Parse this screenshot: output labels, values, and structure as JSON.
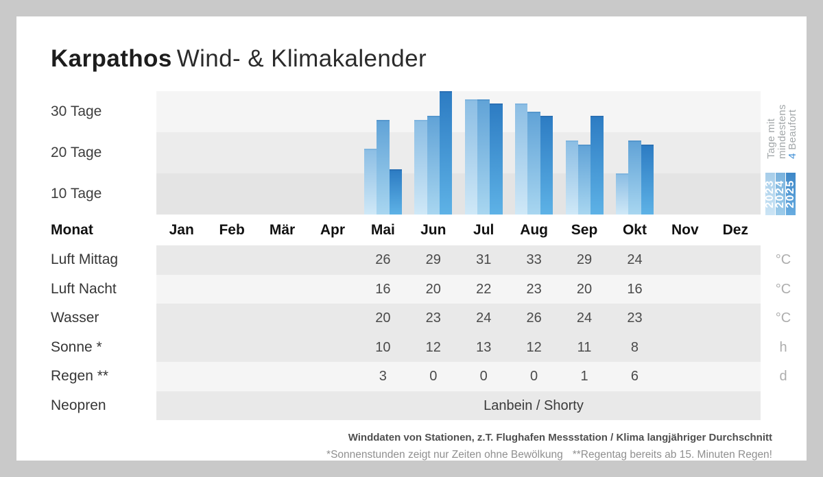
{
  "title": {
    "brand": "Karpathos",
    "subtitle": "Wind- & Klimakalender"
  },
  "chart_data": {
    "type": "bar",
    "title": "Tage mit mindestens 4 Beaufort",
    "ylabel": "Tage",
    "ylim": [
      0,
      30
    ],
    "y_ticks": [
      "30 Tage",
      "20 Tage",
      "10 Tage"
    ],
    "grid": "horizontal-bands",
    "legend_position": "right-vertical",
    "categories": [
      "Jan",
      "Feb",
      "Mär",
      "Apr",
      "Mai",
      "Jun",
      "Jul",
      "Aug",
      "Sep",
      "Okt",
      "Nov",
      "Dez"
    ],
    "series": [
      {
        "name": "2023",
        "values": [
          null,
          null,
          null,
          null,
          16,
          23,
          28,
          27,
          18,
          10,
          null,
          null
        ]
      },
      {
        "name": "2024",
        "values": [
          null,
          null,
          null,
          null,
          23,
          24,
          28,
          25,
          17,
          18,
          null,
          null
        ]
      },
      {
        "name": "2025",
        "values": [
          null,
          null,
          null,
          null,
          11,
          30,
          27,
          24,
          24,
          17,
          null,
          null
        ]
      }
    ]
  },
  "legend": {
    "line1": "Tage mit",
    "line2": "mindestens",
    "accent": "4",
    "accent_rest": " Beaufort",
    "years": [
      {
        "label": "2023"
      },
      {
        "label": "2024"
      },
      {
        "label": "2025"
      }
    ]
  },
  "table": {
    "month_header_label": "Monat",
    "rows": [
      {
        "label": "Luft Mittag",
        "unit": "°C",
        "values": [
          "",
          "",
          "",
          "",
          "26",
          "29",
          "31",
          "33",
          "29",
          "24",
          "",
          ""
        ]
      },
      {
        "label": "Luft Nacht",
        "unit": "°C",
        "values": [
          "",
          "",
          "",
          "",
          "16",
          "20",
          "22",
          "23",
          "20",
          "16",
          "",
          ""
        ]
      },
      {
        "label": "Wasser",
        "unit": "°C",
        "values": [
          "",
          "",
          "",
          "",
          "20",
          "23",
          "24",
          "26",
          "24",
          "23",
          "",
          ""
        ]
      },
      {
        "label": "Sonne *",
        "unit": "h",
        "values": [
          "",
          "",
          "",
          "",
          "10",
          "12",
          "13",
          "12",
          "11",
          "8",
          "",
          ""
        ]
      },
      {
        "label": "Regen **",
        "unit": "d",
        "values": [
          "",
          "",
          "",
          "",
          "3",
          "0",
          "0",
          "0",
          "1",
          "6",
          "",
          ""
        ]
      },
      {
        "label": "Neopren",
        "unit": "",
        "values": [
          "",
          "",
          "",
          "",
          "",
          "",
          "",
          "",
          "",
          "",
          "",
          ""
        ],
        "span_text": "Lanbein / Shorty"
      }
    ]
  },
  "footer": {
    "source": "Winddaten von Stationen, z.T. Flughafen Messstation / Klima langjähriger Durchschnitt",
    "note_sun": "*Sonnenstunden zeigt nur Zeiten ohne Bewölkung",
    "note_rain": "**Regentag bereits ab 15. Minuten Regen!"
  },
  "colors": {
    "page_background": "#c9c9c9",
    "card_background": "#ffffff",
    "accent_blue": "#3e8ed5",
    "year_2023_bar": [
      "#8cbee4",
      "#cfe8f7"
    ],
    "year_2024_bar": [
      "#61a3d7",
      "#a8d6f0"
    ],
    "year_2025_bar": [
      "#2d7cc3",
      "#5eb2e6"
    ]
  }
}
